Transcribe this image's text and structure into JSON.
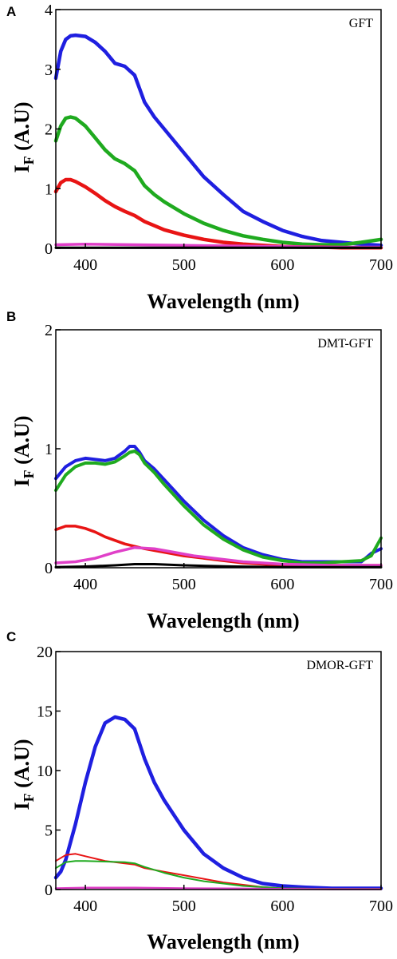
{
  "chart_data": [
    {
      "type": "line",
      "panel": "A",
      "annotation": "GFT",
      "xlabel": "Wavelength (nm)",
      "ylabel_main": "I",
      "ylabel_sub": "F",
      "ylabel_rest": " (A.U)",
      "xlim": [
        370,
        700
      ],
      "ylim": [
        0,
        4
      ],
      "xticks": [
        400,
        500,
        600,
        700
      ],
      "yticks": [
        0,
        1,
        2,
        3,
        4
      ],
      "series": [
        {
          "color": "#1f1fe0",
          "width": 4.5,
          "x": [
            370,
            375,
            380,
            385,
            390,
            400,
            410,
            420,
            430,
            440,
            450,
            460,
            470,
            480,
            500,
            520,
            540,
            560,
            580,
            600,
            620,
            640,
            660,
            680,
            700
          ],
          "y": [
            2.85,
            3.3,
            3.5,
            3.56,
            3.57,
            3.55,
            3.45,
            3.3,
            3.1,
            3.05,
            2.9,
            2.45,
            2.2,
            2.0,
            1.6,
            1.2,
            0.9,
            0.62,
            0.45,
            0.3,
            0.2,
            0.13,
            0.1,
            0.07,
            0.05
          ]
        },
        {
          "color": "#1faa1f",
          "width": 4.5,
          "x": [
            370,
            375,
            380,
            385,
            390,
            400,
            410,
            420,
            430,
            440,
            450,
            460,
            470,
            480,
            500,
            520,
            540,
            560,
            580,
            600,
            620,
            640,
            660,
            680,
            700
          ],
          "y": [
            1.8,
            2.05,
            2.18,
            2.2,
            2.18,
            2.05,
            1.85,
            1.65,
            1.5,
            1.42,
            1.3,
            1.05,
            0.9,
            0.78,
            0.58,
            0.42,
            0.3,
            0.21,
            0.15,
            0.1,
            0.07,
            0.06,
            0.06,
            0.1,
            0.15
          ]
        },
        {
          "color": "#e81414",
          "width": 4.5,
          "x": [
            370,
            375,
            380,
            385,
            390,
            400,
            410,
            420,
            430,
            440,
            450,
            460,
            470,
            480,
            500,
            520,
            540,
            560,
            580,
            600,
            620,
            640,
            660,
            680,
            700
          ],
          "y": [
            0.95,
            1.1,
            1.15,
            1.15,
            1.12,
            1.03,
            0.92,
            0.8,
            0.7,
            0.62,
            0.55,
            0.45,
            0.38,
            0.31,
            0.22,
            0.15,
            0.1,
            0.07,
            0.05,
            0.03,
            0.02,
            0.02,
            0.01,
            0.01,
            0.01
          ]
        },
        {
          "color": "#e040c8",
          "width": 3.5,
          "x": [
            370,
            400,
            450,
            500,
            550,
            600,
            650,
            700
          ],
          "y": [
            0.06,
            0.07,
            0.06,
            0.05,
            0.04,
            0.03,
            0.02,
            0.02
          ]
        },
        {
          "color": "#000000",
          "width": 3,
          "x": [
            370,
            400,
            450,
            500,
            550,
            600,
            650,
            700
          ],
          "y": [
            0.01,
            0.01,
            0.01,
            0.01,
            0.01,
            0.01,
            0.01,
            0.01
          ]
        }
      ]
    },
    {
      "type": "line",
      "panel": "B",
      "annotation": "DMT-GFT",
      "xlabel": "Wavelength (nm)",
      "ylabel_main": "I",
      "ylabel_sub": "F",
      "ylabel_rest": " (A.U)",
      "xlim": [
        370,
        700
      ],
      "ylim": [
        0,
        2
      ],
      "xticks": [
        400,
        500,
        600,
        700
      ],
      "yticks": [
        0,
        1,
        2
      ],
      "series": [
        {
          "color": "#1f1fe0",
          "width": 4,
          "x": [
            370,
            380,
            390,
            400,
            410,
            420,
            430,
            440,
            445,
            450,
            455,
            460,
            470,
            480,
            490,
            500,
            520,
            540,
            560,
            580,
            600,
            620,
            640,
            660,
            680,
            690,
            700
          ],
          "y": [
            0.75,
            0.85,
            0.9,
            0.92,
            0.91,
            0.9,
            0.92,
            0.98,
            1.02,
            1.02,
            0.97,
            0.9,
            0.83,
            0.74,
            0.65,
            0.56,
            0.4,
            0.27,
            0.17,
            0.11,
            0.07,
            0.05,
            0.05,
            0.05,
            0.05,
            0.12,
            0.16
          ]
        },
        {
          "color": "#1faa1f",
          "width": 4,
          "x": [
            370,
            380,
            390,
            400,
            410,
            420,
            430,
            440,
            445,
            450,
            455,
            460,
            470,
            480,
            490,
            500,
            520,
            540,
            560,
            580,
            600,
            620,
            640,
            660,
            680,
            690,
            700
          ],
          "y": [
            0.65,
            0.78,
            0.85,
            0.88,
            0.88,
            0.87,
            0.89,
            0.94,
            0.97,
            0.98,
            0.95,
            0.88,
            0.8,
            0.7,
            0.61,
            0.52,
            0.36,
            0.24,
            0.15,
            0.09,
            0.06,
            0.04,
            0.04,
            0.05,
            0.06,
            0.1,
            0.25
          ]
        },
        {
          "color": "#e81414",
          "width": 3.5,
          "x": [
            370,
            380,
            390,
            400,
            410,
            420,
            440,
            460,
            480,
            500,
            520,
            540,
            560,
            600,
            650,
            700
          ],
          "y": [
            0.32,
            0.35,
            0.35,
            0.33,
            0.3,
            0.26,
            0.2,
            0.16,
            0.13,
            0.1,
            0.08,
            0.06,
            0.04,
            0.02,
            0.02,
            0.02
          ]
        },
        {
          "color": "#e040c8",
          "width": 3.5,
          "x": [
            370,
            390,
            410,
            430,
            450,
            470,
            490,
            510,
            530,
            560,
            600,
            650,
            700
          ],
          "y": [
            0.04,
            0.05,
            0.08,
            0.13,
            0.17,
            0.16,
            0.13,
            0.1,
            0.08,
            0.05,
            0.03,
            0.02,
            0.02
          ]
        },
        {
          "color": "#000000",
          "width": 3,
          "x": [
            370,
            400,
            430,
            450,
            470,
            500,
            550,
            600,
            650,
            700
          ],
          "y": [
            0.005,
            0.01,
            0.02,
            0.03,
            0.03,
            0.02,
            0.01,
            0.005,
            0.005,
            0.005
          ]
        }
      ]
    },
    {
      "type": "line",
      "panel": "C",
      "annotation": "DMOR-GFT",
      "xlabel": "Wavelength (nm)",
      "ylabel_main": "I",
      "ylabel_sub": "F",
      "ylabel_rest": " (A.U)",
      "xlim": [
        370,
        700
      ],
      "ylim": [
        0,
        20
      ],
      "xticks": [
        400,
        500,
        600,
        700
      ],
      "yticks": [
        0,
        5,
        10,
        15,
        20
      ],
      "series": [
        {
          "color": "#1f1fe0",
          "width": 4.5,
          "x": [
            370,
            375,
            380,
            390,
            400,
            410,
            420,
            430,
            440,
            450,
            460,
            470,
            480,
            500,
            520,
            540,
            560,
            580,
            600,
            620,
            650,
            680,
            700
          ],
          "y": [
            1.0,
            1.5,
            2.5,
            5.5,
            9.0,
            12.0,
            14.0,
            14.5,
            14.3,
            13.5,
            11.0,
            9.0,
            7.5,
            5.0,
            3.0,
            1.8,
            1.0,
            0.5,
            0.3,
            0.2,
            0.1,
            0.1,
            0.1
          ]
        },
        {
          "color": "#e81414",
          "width": 2,
          "x": [
            370,
            380,
            390,
            400,
            420,
            440,
            450,
            460,
            480,
            500,
            520,
            540,
            560,
            580,
            600,
            650,
            700
          ],
          "y": [
            2.4,
            2.9,
            3.0,
            2.8,
            2.4,
            2.2,
            2.1,
            1.8,
            1.5,
            1.2,
            0.9,
            0.6,
            0.4,
            0.2,
            0.1,
            0.05,
            0.05
          ]
        },
        {
          "color": "#1faa1f",
          "width": 2,
          "x": [
            370,
            380,
            390,
            400,
            420,
            440,
            450,
            460,
            480,
            500,
            520,
            540,
            560,
            580,
            600,
            650,
            700
          ],
          "y": [
            1.8,
            2.3,
            2.4,
            2.4,
            2.35,
            2.3,
            2.2,
            1.9,
            1.4,
            1.0,
            0.7,
            0.5,
            0.3,
            0.2,
            0.1,
            0.05,
            0.05
          ]
        },
        {
          "color": "#e040c8",
          "width": 2.5,
          "x": [
            370,
            400,
            450,
            500,
            550,
            600,
            650,
            700
          ],
          "y": [
            0.1,
            0.15,
            0.15,
            0.1,
            0.08,
            0.05,
            0.03,
            0.03
          ]
        }
      ]
    }
  ]
}
